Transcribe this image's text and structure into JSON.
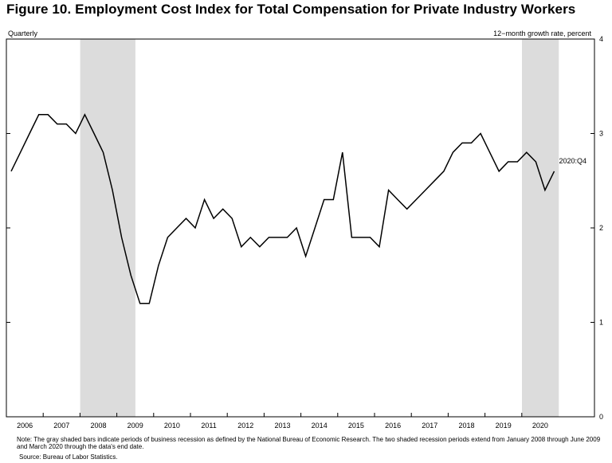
{
  "chart_data": {
    "type": "line",
    "title": "Figure 10. Employment Cost Index for Total Compensation for Private Industry Workers",
    "frequency_label": "Quarterly",
    "ylabel": "12−month growth rate, percent",
    "ylim": [
      0,
      4
    ],
    "yticks": [
      "0",
      "1",
      "2",
      "3",
      "4"
    ],
    "xticks": [
      "2006",
      "2007",
      "2008",
      "2009",
      "2010",
      "2011",
      "2012",
      "2013",
      "2014",
      "2015",
      "2016",
      "2017",
      "2018",
      "2019",
      "2020"
    ],
    "start_year": 2006,
    "values": [
      2.6,
      2.8,
      3.0,
      3.2,
      3.2,
      3.1,
      3.1,
      3.0,
      3.2,
      3.0,
      2.8,
      2.4,
      1.9,
      1.5,
      1.2,
      1.2,
      1.6,
      1.9,
      2.0,
      2.1,
      2.0,
      2.3,
      2.1,
      2.2,
      2.1,
      1.8,
      1.9,
      1.8,
      1.9,
      1.9,
      1.9,
      2.0,
      1.7,
      2.0,
      2.3,
      2.3,
      2.8,
      1.9,
      1.9,
      1.9,
      1.8,
      2.4,
      2.3,
      2.2,
      2.3,
      2.4,
      2.5,
      2.6,
      2.8,
      2.9,
      2.9,
      3.0,
      2.8,
      2.6,
      2.7,
      2.7,
      2.8,
      2.7,
      2.4,
      2.6
    ],
    "end_label": "2020:Q4",
    "recessions": [
      {
        "start": "2008:Q1",
        "end": "2009:Q2"
      },
      {
        "start": "2020:Q1",
        "end": "2020:Q4"
      }
    ],
    "grid": false,
    "line_color": "#000000",
    "recession_color": "#dcdcdc"
  },
  "note": "Note: The gray shaded bars indicate periods of business recession as defined by the National Bureau of Economic Research. The two shaded recession periods extend from January 2008 through June 2009 and March 2020 through the data's end date.",
  "source": "Source: Bureau of Labor Statistics."
}
